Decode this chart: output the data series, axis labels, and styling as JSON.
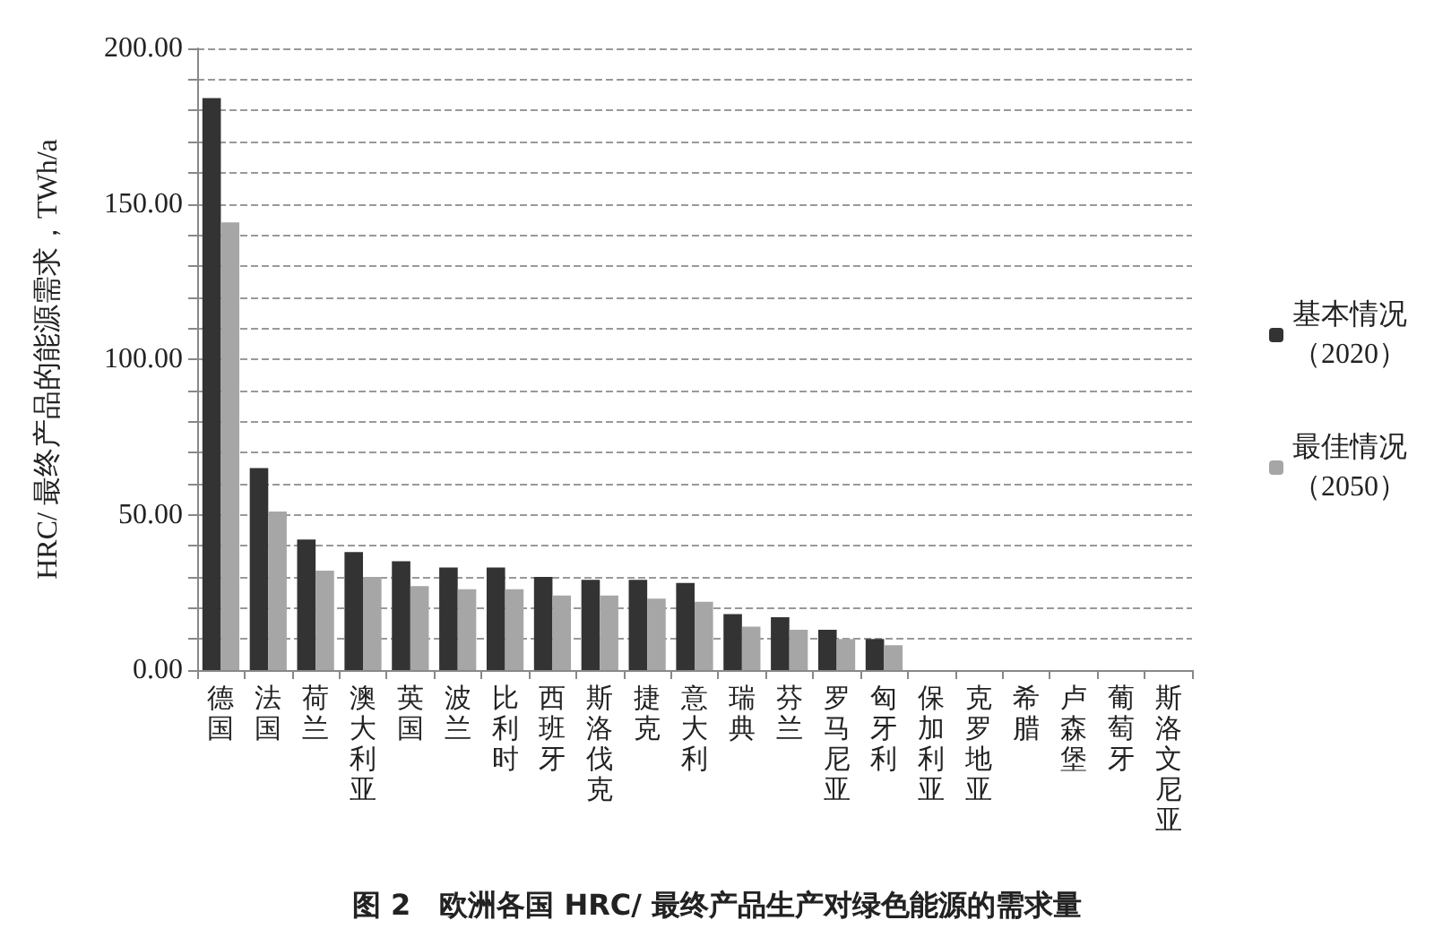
{
  "chart_data": {
    "type": "bar",
    "title": "图 2　欧洲各国 HRC/ 最终产品生产对绿色能源的需求量",
    "ylabel": "HRC/ 最终产品的能源需求，TWh/a",
    "categories": [
      "德国",
      "法国",
      "荷兰",
      "澳大利亚",
      "英国",
      "波兰",
      "比利时",
      "西班牙",
      "斯洛伐克",
      "捷克",
      "意大利",
      "瑞典",
      "芬兰",
      "罗马尼亚",
      "匈牙利",
      "保加利亚",
      "克罗地亚",
      "希腊",
      "卢森堡",
      "葡萄牙",
      "斯洛文尼亚"
    ],
    "series": [
      {
        "name": "基本情况（2020）",
        "color": "#333333",
        "values": [
          184,
          65,
          42,
          38,
          35,
          33,
          33,
          30,
          29,
          29,
          28,
          18,
          17,
          13,
          10,
          0,
          0,
          0,
          0,
          0,
          0
        ]
      },
      {
        "name": "最佳情况（2050）",
        "color": "#a6a6a6",
        "values": [
          144,
          51,
          32,
          30,
          27,
          26,
          26,
          24,
          24,
          23,
          22,
          14,
          13,
          10,
          8,
          0,
          0,
          0,
          0,
          0,
          0
        ]
      }
    ],
    "ylim": [
      0,
      200
    ],
    "yticks": [
      {
        "value": 0,
        "label": "0.00"
      },
      {
        "value": 10,
        "label": null
      },
      {
        "value": 20,
        "label": null
      },
      {
        "value": 30,
        "label": null
      },
      {
        "value": 40,
        "label": null
      },
      {
        "value": 50,
        "label": "50.00"
      },
      {
        "value": 60,
        "label": null
      },
      {
        "value": 70,
        "label": null
      },
      {
        "value": 80,
        "label": null
      },
      {
        "value": 90,
        "label": null
      },
      {
        "value": 100,
        "label": "100.00"
      },
      {
        "value": 110,
        "label": null
      },
      {
        "value": 120,
        "label": null
      },
      {
        "value": 130,
        "label": null
      },
      {
        "value": 140,
        "label": null
      },
      {
        "value": 150,
        "label": "150.00"
      },
      {
        "value": 160,
        "label": null
      },
      {
        "value": 170,
        "label": null
      },
      {
        "value": 180,
        "label": null
      },
      {
        "value": 190,
        "label": null
      },
      {
        "value": 200,
        "label": "200.00"
      }
    ],
    "grid": "y",
    "legend": "right"
  }
}
